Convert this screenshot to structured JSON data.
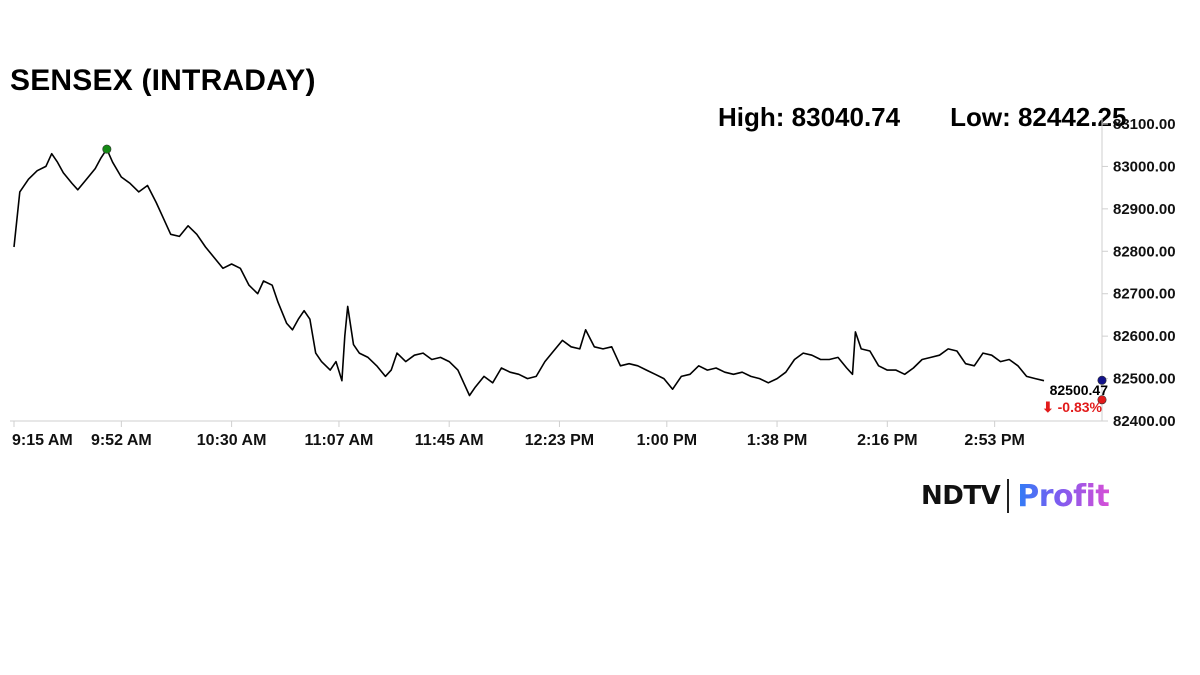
{
  "chart_data": {
    "type": "line",
    "title": "SENSEX (INTRADAY)",
    "high_label": "High: 83040.74",
    "low_label": "Low: 82442.25",
    "x_start": "9:15 AM",
    "x_end": "3:30 PM",
    "x_ticks": [
      "9:15 AM",
      "9:52 AM",
      "10:30 AM",
      "11:07 AM",
      "11:45 AM",
      "12:23 PM",
      "1:00 PM",
      "1:38 PM",
      "2:16 PM",
      "2:53 PM"
    ],
    "y_ticks": [
      "82400.00",
      "82500.00",
      "82600.00",
      "82700.00",
      "82800.00",
      "82900.00",
      "83000.00",
      "83100.00"
    ],
    "ylim": [
      82400,
      83100
    ],
    "series": [
      {
        "color": "#000000",
        "points": [
          [
            "9:15 AM",
            82810
          ],
          [
            "9:17 AM",
            82940
          ],
          [
            "9:20 AM",
            82970
          ],
          [
            "9:23 AM",
            82990
          ],
          [
            "9:26 AM",
            83000
          ],
          [
            "9:28 AM",
            83030
          ],
          [
            "9:30 AM",
            83010
          ],
          [
            "9:32 AM",
            82985
          ],
          [
            "9:35 AM",
            82960
          ],
          [
            "9:37 AM",
            82945
          ],
          [
            "9:40 AM",
            82970
          ],
          [
            "9:43 AM",
            82995
          ],
          [
            "9:45 AM",
            83020
          ],
          [
            "9:47 AM",
            83040.74
          ],
          [
            "9:49 AM",
            83010
          ],
          [
            "9:52 AM",
            82975
          ],
          [
            "9:55 AM",
            82960
          ],
          [
            "9:58 AM",
            82940
          ],
          [
            "10:01 AM",
            82955
          ],
          [
            "10:04 AM",
            82915
          ],
          [
            "10:06 AM",
            82885
          ],
          [
            "10:09 AM",
            82840
          ],
          [
            "10:12 AM",
            82835
          ],
          [
            "10:15 AM",
            82860
          ],
          [
            "10:18 AM",
            82840
          ],
          [
            "10:21 AM",
            82810
          ],
          [
            "10:24 AM",
            82785
          ],
          [
            "10:27 AM",
            82760
          ],
          [
            "10:30 AM",
            82770
          ],
          [
            "10:33 AM",
            82760
          ],
          [
            "10:36 AM",
            82720
          ],
          [
            "10:39 AM",
            82700
          ],
          [
            "10:41 AM",
            82730
          ],
          [
            "10:44 AM",
            82720
          ],
          [
            "10:46 AM",
            82680
          ],
          [
            "10:49 AM",
            82630
          ],
          [
            "10:51 AM",
            82615
          ],
          [
            "10:53 AM",
            82640
          ],
          [
            "10:55 AM",
            82660
          ],
          [
            "10:57 AM",
            82640
          ],
          [
            "10:59 AM",
            82560
          ],
          [
            "11:01 AM",
            82540
          ],
          [
            "11:04 AM",
            82520
          ],
          [
            "11:06 AM",
            82540
          ],
          [
            "11:08 AM",
            82495
          ],
          [
            "11:09 AM",
            82600
          ],
          [
            "11:10 AM",
            82670
          ],
          [
            "11:12 AM",
            82580
          ],
          [
            "11:14 AM",
            82560
          ],
          [
            "11:17 AM",
            82550
          ],
          [
            "11:20 AM",
            82530
          ],
          [
            "11:23 AM",
            82505
          ],
          [
            "11:25 AM",
            82520
          ],
          [
            "11:27 AM",
            82560
          ],
          [
            "11:30 AM",
            82540
          ],
          [
            "11:33 AM",
            82555
          ],
          [
            "11:36 AM",
            82560
          ],
          [
            "11:39 AM",
            82545
          ],
          [
            "11:42 AM",
            82550
          ],
          [
            "11:45 AM",
            82540
          ],
          [
            "11:48 AM",
            82520
          ],
          [
            "11:50 AM",
            82490
          ],
          [
            "11:52 AM",
            82460
          ],
          [
            "11:54 AM",
            82480
          ],
          [
            "11:57 AM",
            82505
          ],
          [
            "12:00 PM",
            82490
          ],
          [
            "12:03 PM",
            82525
          ],
          [
            "12:06 PM",
            82515
          ],
          [
            "12:09 PM",
            82510
          ],
          [
            "12:12 PM",
            82500
          ],
          [
            "12:15 PM",
            82505
          ],
          [
            "12:18 PM",
            82540
          ],
          [
            "12:21 PM",
            82565
          ],
          [
            "12:24 PM",
            82590
          ],
          [
            "12:27 PM",
            82575
          ],
          [
            "12:30 PM",
            82570
          ],
          [
            "12:32 PM",
            82615
          ],
          [
            "12:35 PM",
            82575
          ],
          [
            "12:38 PM",
            82570
          ],
          [
            "12:41 PM",
            82575
          ],
          [
            "12:44 PM",
            82530
          ],
          [
            "12:47 PM",
            82535
          ],
          [
            "12:50 PM",
            82530
          ],
          [
            "12:53 PM",
            82520
          ],
          [
            "12:56 PM",
            82510
          ],
          [
            "12:59 PM",
            82500
          ],
          [
            "1:02 PM",
            82475
          ],
          [
            "1:05 PM",
            82505
          ],
          [
            "1:08 PM",
            82510
          ],
          [
            "1:11 PM",
            82530
          ],
          [
            "1:14 PM",
            82520
          ],
          [
            "1:17 PM",
            82525
          ],
          [
            "1:20 PM",
            82515
          ],
          [
            "1:23 PM",
            82510
          ],
          [
            "1:26 PM",
            82515
          ],
          [
            "1:29 PM",
            82505
          ],
          [
            "1:32 PM",
            82500
          ],
          [
            "1:35 PM",
            82490
          ],
          [
            "1:38 PM",
            82500
          ],
          [
            "1:41 PM",
            82515
          ],
          [
            "1:44 PM",
            82545
          ],
          [
            "1:47 PM",
            82560
          ],
          [
            "1:50 PM",
            82555
          ],
          [
            "1:53 PM",
            82545
          ],
          [
            "1:56 PM",
            82545
          ],
          [
            "1:59 PM",
            82550
          ],
          [
            "2:02 PM",
            82525
          ],
          [
            "2:04 PM",
            82510
          ],
          [
            "2:05 PM",
            82610
          ],
          [
            "2:07 PM",
            82570
          ],
          [
            "2:10 PM",
            82565
          ],
          [
            "2:13 PM",
            82530
          ],
          [
            "2:16 PM",
            82520
          ],
          [
            "2:19 PM",
            82520
          ],
          [
            "2:22 PM",
            82510
          ],
          [
            "2:25 PM",
            82525
          ],
          [
            "2:28 PM",
            82545
          ],
          [
            "2:31 PM",
            82550
          ],
          [
            "2:34 PM",
            82555
          ],
          [
            "2:37 PM",
            82570
          ],
          [
            "2:40 PM",
            82565
          ],
          [
            "2:43 PM",
            82535
          ],
          [
            "2:46 PM",
            82530
          ],
          [
            "2:49 PM",
            82560
          ],
          [
            "2:52 PM",
            82555
          ],
          [
            "2:55 PM",
            82540
          ],
          [
            "2:58 PM",
            82545
          ],
          [
            "3:01 PM",
            82530
          ],
          [
            "3:04 PM",
            82505
          ],
          [
            "3:07 PM",
            82500
          ],
          [
            "3:10 PM",
            82495
          ]
        ]
      }
    ],
    "markers": [
      {
        "name": "high-marker",
        "x": "9:47 AM",
        "y": 83040.74,
        "color": "#138a13"
      },
      {
        "name": "current-marker",
        "x": "3:30 PM",
        "y": 82496,
        "color": "#12128a"
      },
      {
        "name": "low-marker",
        "x": "3:30 PM",
        "y": 82450,
        "color": "#e21b1b"
      }
    ],
    "last_value": "82500.47",
    "change_text": "⬇ -0.83%",
    "change_color": "#e21b1b",
    "grid": false
  },
  "brand": {
    "name": "NDTV",
    "sub": "Profit"
  }
}
